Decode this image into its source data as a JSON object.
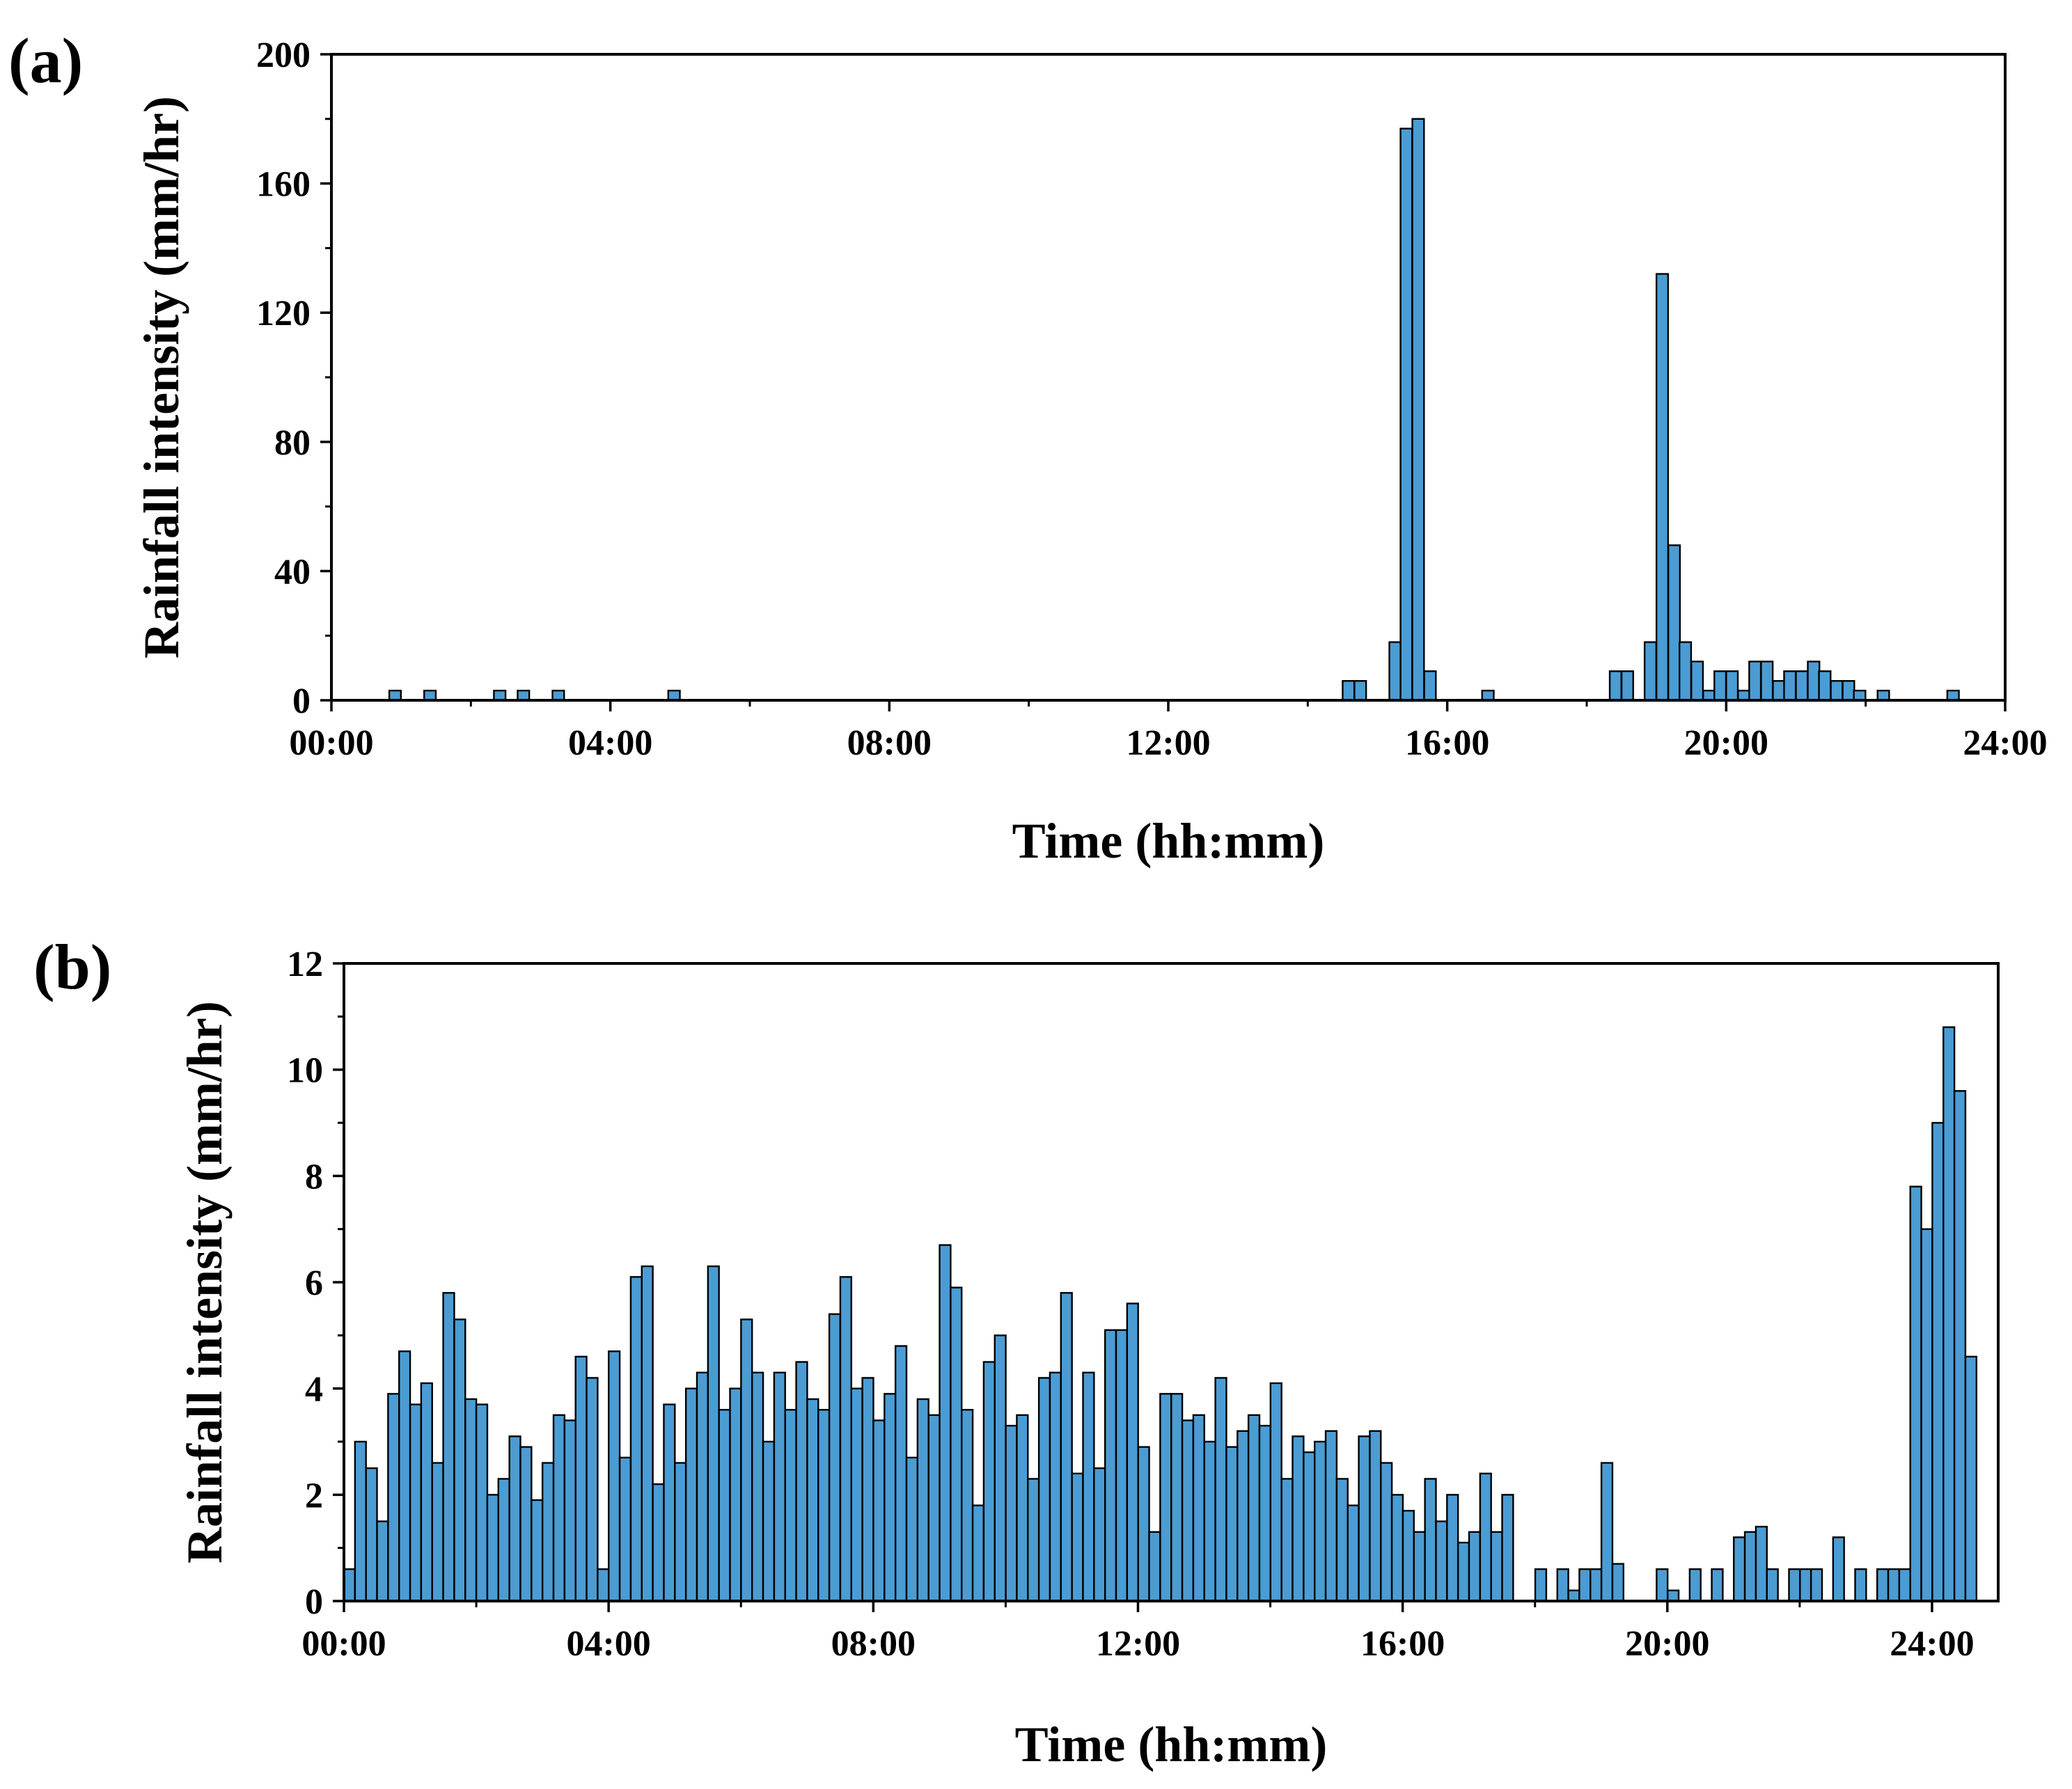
{
  "chart_data": [
    {
      "panel_label": "(a)",
      "type": "bar",
      "xlabel": "Time (hh:mm)",
      "ylabel": "Rainfall intensity (mm/hr)",
      "xlim": [
        0,
        24
      ],
      "ylim": [
        0,
        200
      ],
      "x_ticks": [
        0,
        4,
        8,
        12,
        16,
        20,
        24
      ],
      "x_tick_labels": [
        "00:00",
        "04:00",
        "08:00",
        "12:00",
        "16:00",
        "20:00",
        "24:00"
      ],
      "y_ticks": [
        0,
        40,
        80,
        120,
        160,
        200
      ],
      "y_tick_labels": [
        "0",
        "40",
        "80",
        "120",
        "160",
        "200"
      ],
      "bar_width_hours": 0.1667,
      "bar_color": "#4b9cd3",
      "series": [
        {
          "name": "Rainfall intensity",
          "x": [
            0.83,
            1.33,
            2.33,
            2.67,
            3.17,
            4.83,
            14.5,
            14.67,
            15.17,
            15.33,
            15.5,
            15.67,
            16.5,
            18.33,
            18.5,
            18.83,
            19.0,
            19.17,
            19.33,
            19.5,
            19.67,
            19.83,
            20.0,
            20.17,
            20.33,
            20.5,
            20.67,
            20.83,
            21.0,
            21.17,
            21.33,
            21.5,
            21.67,
            21.83,
            22.17,
            23.17
          ],
          "values": [
            3,
            3,
            3,
            3,
            3,
            3,
            6,
            6,
            18,
            177,
            180,
            9,
            3,
            9,
            9,
            18,
            132,
            48,
            18,
            12,
            3,
            9,
            9,
            3,
            12,
            12,
            6,
            9,
            9,
            12,
            9,
            6,
            6,
            3,
            3,
            3
          ]
        }
      ]
    },
    {
      "panel_label": "(b)",
      "type": "bar",
      "xlabel": "Time (hh:mm)",
      "ylabel": "Rainfall intensity (mm/hr)",
      "xlim": [
        0,
        25
      ],
      "ylim": [
        0,
        12
      ],
      "x_ticks": [
        0,
        4,
        8,
        12,
        16,
        20,
        24
      ],
      "x_tick_labels": [
        "00:00",
        "04:00",
        "08:00",
        "12:00",
        "16:00",
        "20:00",
        "24:00"
      ],
      "y_ticks": [
        0,
        2,
        4,
        6,
        8,
        10,
        12
      ],
      "y_tick_labels": [
        "0",
        "2",
        "4",
        "6",
        "8",
        "10",
        "12"
      ],
      "bar_width_hours": 0.1667,
      "bar_color": "#4b9cd3",
      "series": [
        {
          "name": "Rainfall intensity",
          "x_start": 0,
          "x_step": 0.1667,
          "values": [
            0.6,
            3.0,
            2.5,
            1.5,
            3.9,
            4.7,
            3.7,
            4.1,
            2.6,
            5.8,
            5.3,
            3.8,
            3.7,
            2.0,
            2.3,
            3.1,
            2.9,
            1.9,
            2.6,
            3.5,
            3.4,
            4.6,
            4.2,
            0.6,
            4.7,
            2.7,
            6.1,
            6.3,
            2.2,
            3.7,
            2.6,
            4.0,
            4.3,
            6.3,
            3.6,
            4.0,
            5.3,
            4.3,
            3.0,
            4.3,
            3.6,
            4.5,
            3.8,
            3.6,
            5.4,
            6.1,
            4.0,
            4.2,
            3.4,
            3.9,
            4.8,
            2.7,
            3.8,
            3.5,
            6.7,
            5.9,
            3.6,
            1.8,
            4.5,
            5.0,
            3.3,
            3.5,
            2.3,
            4.2,
            4.3,
            5.8,
            2.4,
            4.3,
            2.5,
            5.1,
            5.1,
            5.6,
            2.9,
            1.3,
            3.9,
            3.9,
            3.4,
            3.5,
            3.0,
            4.2,
            2.9,
            3.2,
            3.5,
            3.3,
            4.1,
            2.3,
            3.1,
            2.8,
            3.0,
            3.2,
            2.3,
            1.8,
            3.1,
            3.2,
            2.6,
            2.0,
            1.7,
            1.3,
            2.3,
            1.5,
            2.0,
            1.1,
            1.3,
            2.4,
            1.3,
            2.0,
            0,
            0,
            0.6,
            0,
            0.6,
            0.2,
            0.6,
            0.6,
            2.6,
            0.7,
            0,
            0,
            0,
            0.6,
            0.2,
            0,
            0.6,
            0,
            0.6,
            0,
            1.2,
            1.3,
            1.4,
            0.6,
            0,
            0.6,
            0.6,
            0.6,
            0,
            1.2,
            0,
            0.6,
            0,
            0.6,
            0.6,
            0.6,
            7.8,
            7.0,
            9.0,
            10.8,
            9.6,
            4.6
          ]
        }
      ]
    }
  ]
}
